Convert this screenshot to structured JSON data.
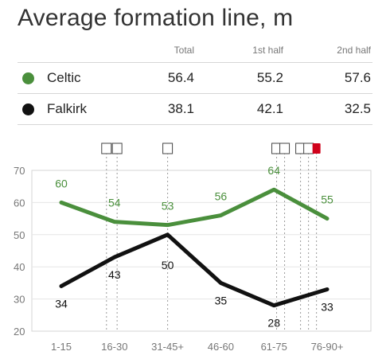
{
  "title": "Average formation line, m",
  "table": {
    "headers": [
      "Total",
      "1st half",
      "2nd half"
    ],
    "rows": [
      {
        "team": "Celtic",
        "color": "#4a8f3c",
        "total": "56.4",
        "first": "55.2",
        "second": "57.6"
      },
      {
        "team": "Falkirk",
        "color": "#111111",
        "total": "38.1",
        "first": "42.1",
        "second": "32.5"
      }
    ]
  },
  "chart_data": {
    "type": "line",
    "categories": [
      "1-15",
      "16-30",
      "31-45+",
      "46-60",
      "61-75",
      "76-90+"
    ],
    "ylim": [
      20,
      70
    ],
    "yticks": [
      20,
      30,
      40,
      50,
      60,
      70
    ],
    "grid": true,
    "series": [
      {
        "name": "Celtic",
        "color": "#4a8f3c",
        "values": [
          60,
          54,
          53,
          56,
          64,
          55
        ]
      },
      {
        "name": "Falkirk",
        "color": "#111111",
        "values": [
          34,
          43,
          50,
          35,
          28,
          33
        ]
      }
    ],
    "event_markers": [
      {
        "x": 0.85,
        "type": "substitution-icon"
      },
      {
        "x": 1.05,
        "type": "substitution-icon"
      },
      {
        "x": 2.0,
        "type": "substitution-icon"
      },
      {
        "x": 4.05,
        "type": "substitution-icon"
      },
      {
        "x": 4.2,
        "type": "substitution-icon"
      },
      {
        "x": 4.5,
        "type": "substitution-icon"
      },
      {
        "x": 4.65,
        "type": "substitution-icon"
      },
      {
        "x": 4.8,
        "type": "red-card-icon"
      }
    ]
  }
}
